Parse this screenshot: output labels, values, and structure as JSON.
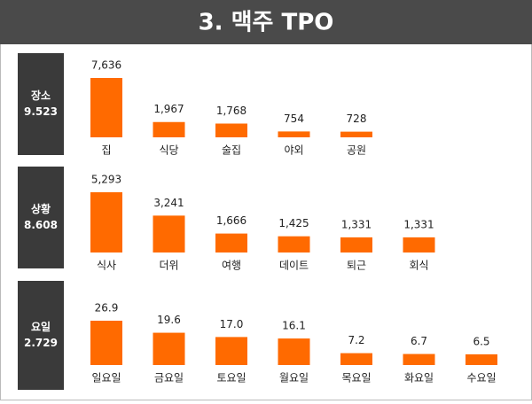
{
  "title": "3. 맥주 TPO",
  "chart_data": [
    {
      "type": "bar",
      "title": "장소",
      "subtitle": "9.523",
      "color": "#ff6a00",
      "categories": [
        "집",
        "식당",
        "술집",
        "야외",
        "공원"
      ],
      "values": [
        7636,
        1967,
        1768,
        754,
        728
      ],
      "value_labels": [
        "7,636",
        "1,967",
        "1,768",
        "754",
        "728"
      ]
    },
    {
      "type": "bar",
      "title": "상황",
      "subtitle": "8.608",
      "color": "#ff6a00",
      "categories": [
        "식사",
        "더위",
        "여행",
        "데이트",
        "퇴근",
        "회식"
      ],
      "values": [
        5293,
        3241,
        1666,
        1425,
        1331,
        1331
      ],
      "value_labels": [
        "5,293",
        "3,241",
        "1,666",
        "1,425",
        "1,331",
        "1,331"
      ]
    },
    {
      "type": "bar",
      "title": "요일",
      "subtitle": "2.729",
      "color": "#ff6a00",
      "categories": [
        "일요일",
        "금요일",
        "토요일",
        "월요일",
        "목요일",
        "화요일",
        "수요일"
      ],
      "values": [
        26.9,
        19.6,
        17.0,
        16.1,
        7.2,
        6.7,
        6.5
      ],
      "value_labels": [
        "26.9",
        "19.6",
        "17.0",
        "16.1",
        "7.2",
        "6.7",
        "6.5"
      ]
    }
  ]
}
